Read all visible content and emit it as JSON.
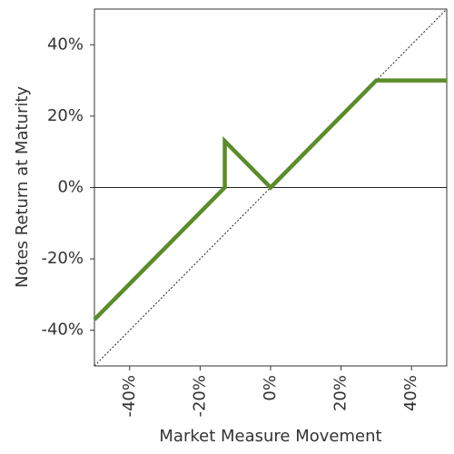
{
  "chart_data": {
    "type": "line",
    "x_label": "Market Measure Movement",
    "y_label": "Notes Return at Maturity",
    "x": [
      -50,
      -13,
      -13,
      0,
      30,
      50
    ],
    "values": [
      -37,
      0,
      13,
      0,
      30,
      30
    ],
    "color": "#5b8c2a",
    "xlim": [
      -50,
      50
    ],
    "ylim": [
      -50,
      50
    ],
    "xticks": [
      {
        "value": -40,
        "label": "-40%"
      },
      {
        "value": -20,
        "label": "-20%"
      },
      {
        "value": 0,
        "label": "0%"
      },
      {
        "value": 20,
        "label": "20%"
      },
      {
        "value": 40,
        "label": "40%"
      }
    ],
    "yticks": [
      {
        "value": -40,
        "label": "-40%"
      },
      {
        "value": -20,
        "label": "-20%"
      },
      {
        "value": 0,
        "label": "0%"
      },
      {
        "value": 20,
        "label": "20%"
      },
      {
        "value": 40,
        "label": "40%"
      }
    ]
  }
}
